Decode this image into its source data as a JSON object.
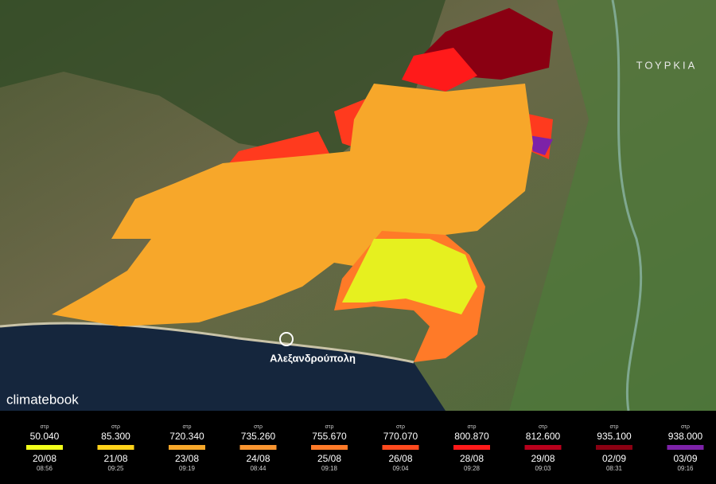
{
  "map": {
    "country_label": "ΤΟΥΡΚΙΑ",
    "city_label": "Αλεξανδρούπολη",
    "logo": "climatebook"
  },
  "legend": {
    "items": [
      {
        "unit": "στρ",
        "area": "50.040",
        "date": "20/08",
        "time": "08:56",
        "color": "#f2ff1a"
      },
      {
        "unit": "στρ",
        "area": "85.300",
        "date": "21/08",
        "time": "09:25",
        "color": "#ffd21a"
      },
      {
        "unit": "στρ",
        "area": "720.340",
        "date": "23/08",
        "time": "09:19",
        "color": "#f7a72a"
      },
      {
        "unit": "στρ",
        "area": "735.260",
        "date": "24/08",
        "time": "08:44",
        "color": "#f99530"
      },
      {
        "unit": "στρ",
        "area": "755.670",
        "date": "25/08",
        "time": "09:18",
        "color": "#ff7a28"
      },
      {
        "unit": "στρ",
        "area": "770.070",
        "date": "26/08",
        "time": "09:04",
        "color": "#ff4a1e"
      },
      {
        "unit": "στρ",
        "area": "800.870",
        "date": "28/08",
        "time": "09:28",
        "color": "#ff1a1a"
      },
      {
        "unit": "στρ",
        "area": "812.600",
        "date": "29/08",
        "time": "09:03",
        "color": "#b8001c"
      },
      {
        "unit": "στρ",
        "area": "935.100",
        "date": "02/09",
        "time": "08:31",
        "color": "#8a0012"
      },
      {
        "unit": "στρ",
        "area": "938.000",
        "date": "03/09",
        "time": "09:16",
        "color": "#7d22a8"
      }
    ]
  }
}
